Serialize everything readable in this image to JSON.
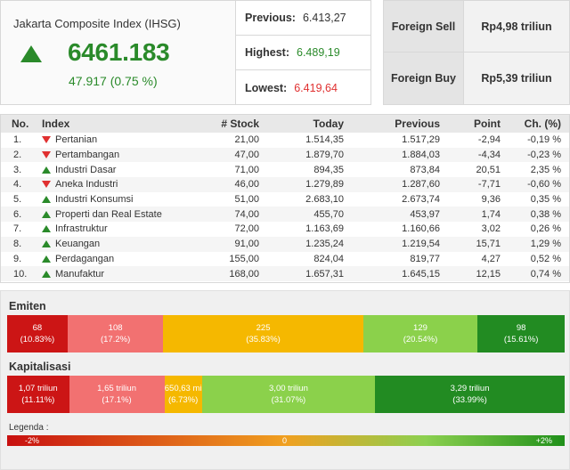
{
  "index": {
    "title": "Jakarta Composite Index (IHSG)",
    "value": "6461.183",
    "change": "47.917 (0.75 %)",
    "trend": "up"
  },
  "stats": [
    {
      "label": "Previous:",
      "value": "6.413,27",
      "tone": "neutral"
    },
    {
      "label": "Highest:",
      "value": "6.489,19",
      "tone": "green"
    },
    {
      "label": "Lowest:",
      "value": "6.419,64",
      "tone": "red"
    }
  ],
  "foreign": [
    {
      "label": "Foreign Sell",
      "value": "Rp4,98 triliun"
    },
    {
      "label": "Foreign Buy",
      "value": "Rp5,39 triliun"
    }
  ],
  "table": {
    "headers": [
      "No.",
      "Index",
      "# Stock",
      "Today",
      "Previous",
      "Point",
      "Ch. (%)"
    ],
    "rows": [
      {
        "no": "1.",
        "name": "Pertanian",
        "dir": "down",
        "stock": "21,00",
        "today": "1.514,35",
        "prev": "1.517,29",
        "point": "-2,94",
        "ch": "-0,19 %"
      },
      {
        "no": "2.",
        "name": "Pertambangan",
        "dir": "down",
        "stock": "47,00",
        "today": "1.879,70",
        "prev": "1.884,03",
        "point": "-4,34",
        "ch": "-0,23 %"
      },
      {
        "no": "3.",
        "name": "Industri Dasar",
        "dir": "up",
        "stock": "71,00",
        "today": "894,35",
        "prev": "873,84",
        "point": "20,51",
        "ch": "2,35 %"
      },
      {
        "no": "4.",
        "name": "Aneka Industri",
        "dir": "down",
        "stock": "46,00",
        "today": "1.279,89",
        "prev": "1.287,60",
        "point": "-7,71",
        "ch": "-0,60 %"
      },
      {
        "no": "5.",
        "name": "Industri Konsumsi",
        "dir": "up",
        "stock": "51,00",
        "today": "2.683,10",
        "prev": "2.673,74",
        "point": "9,36",
        "ch": "0,35 %"
      },
      {
        "no": "6.",
        "name": "Properti dan Real Estate",
        "dir": "up",
        "stock": "74,00",
        "today": "455,70",
        "prev": "453,97",
        "point": "1,74",
        "ch": "0,38 %"
      },
      {
        "no": "7.",
        "name": "Infrastruktur",
        "dir": "up",
        "stock": "72,00",
        "today": "1.163,69",
        "prev": "1.160,66",
        "point": "3,02",
        "ch": "0,26 %"
      },
      {
        "no": "8.",
        "name": "Keuangan",
        "dir": "up",
        "stock": "91,00",
        "today": "1.235,24",
        "prev": "1.219,54",
        "point": "15,71",
        "ch": "1,29 %"
      },
      {
        "no": "9.",
        "name": "Perdagangan",
        "dir": "up",
        "stock": "155,00",
        "today": "824,04",
        "prev": "819,77",
        "point": "4,27",
        "ch": "0,52 %"
      },
      {
        "no": "10.",
        "name": "Manufaktur",
        "dir": "up",
        "stock": "168,00",
        "today": "1.657,31",
        "prev": "1.645,15",
        "point": "12,15",
        "ch": "0,74 %"
      }
    ]
  },
  "emiten": {
    "title": "Emiten",
    "segments": [
      {
        "label": "68",
        "pct": "(10.83%)",
        "share": 10.83,
        "color": "#cc1515"
      },
      {
        "label": "108",
        "pct": "(17.2%)",
        "share": 17.2,
        "color": "#f27171"
      },
      {
        "label": "225",
        "pct": "(35.83%)",
        "share": 35.83,
        "color": "#f5b800"
      },
      {
        "label": "129",
        "pct": "(20.54%)",
        "share": 20.54,
        "color": "#8bd14b"
      },
      {
        "label": "98",
        "pct": "(15.61%)",
        "share": 15.61,
        "color": "#228b22"
      }
    ]
  },
  "kapitalisasi": {
    "title": "Kapitalisasi",
    "segments": [
      {
        "label": "1,07 triliun",
        "pct": "(11.11%)",
        "share": 11.11,
        "color": "#cc1515"
      },
      {
        "label": "1,65 triliun",
        "pct": "(17.1%)",
        "share": 17.1,
        "color": "#f27171"
      },
      {
        "label": "650,63 mi",
        "pct": "(6.73%)",
        "share": 6.73,
        "color": "#f5b800"
      },
      {
        "label": "3,00 triliun",
        "pct": "(31.07%)",
        "share": 31.07,
        "color": "#8bd14b"
      },
      {
        "label": "3,29 triliun",
        "pct": "(33.99%)",
        "share": 33.99,
        "color": "#228b22"
      }
    ]
  },
  "legend": {
    "title": "Legenda :",
    "min": "-2%",
    "mid": "0",
    "max": "+2%"
  },
  "colors": {
    "up": "#2a8a2a",
    "down": "#e03030"
  }
}
